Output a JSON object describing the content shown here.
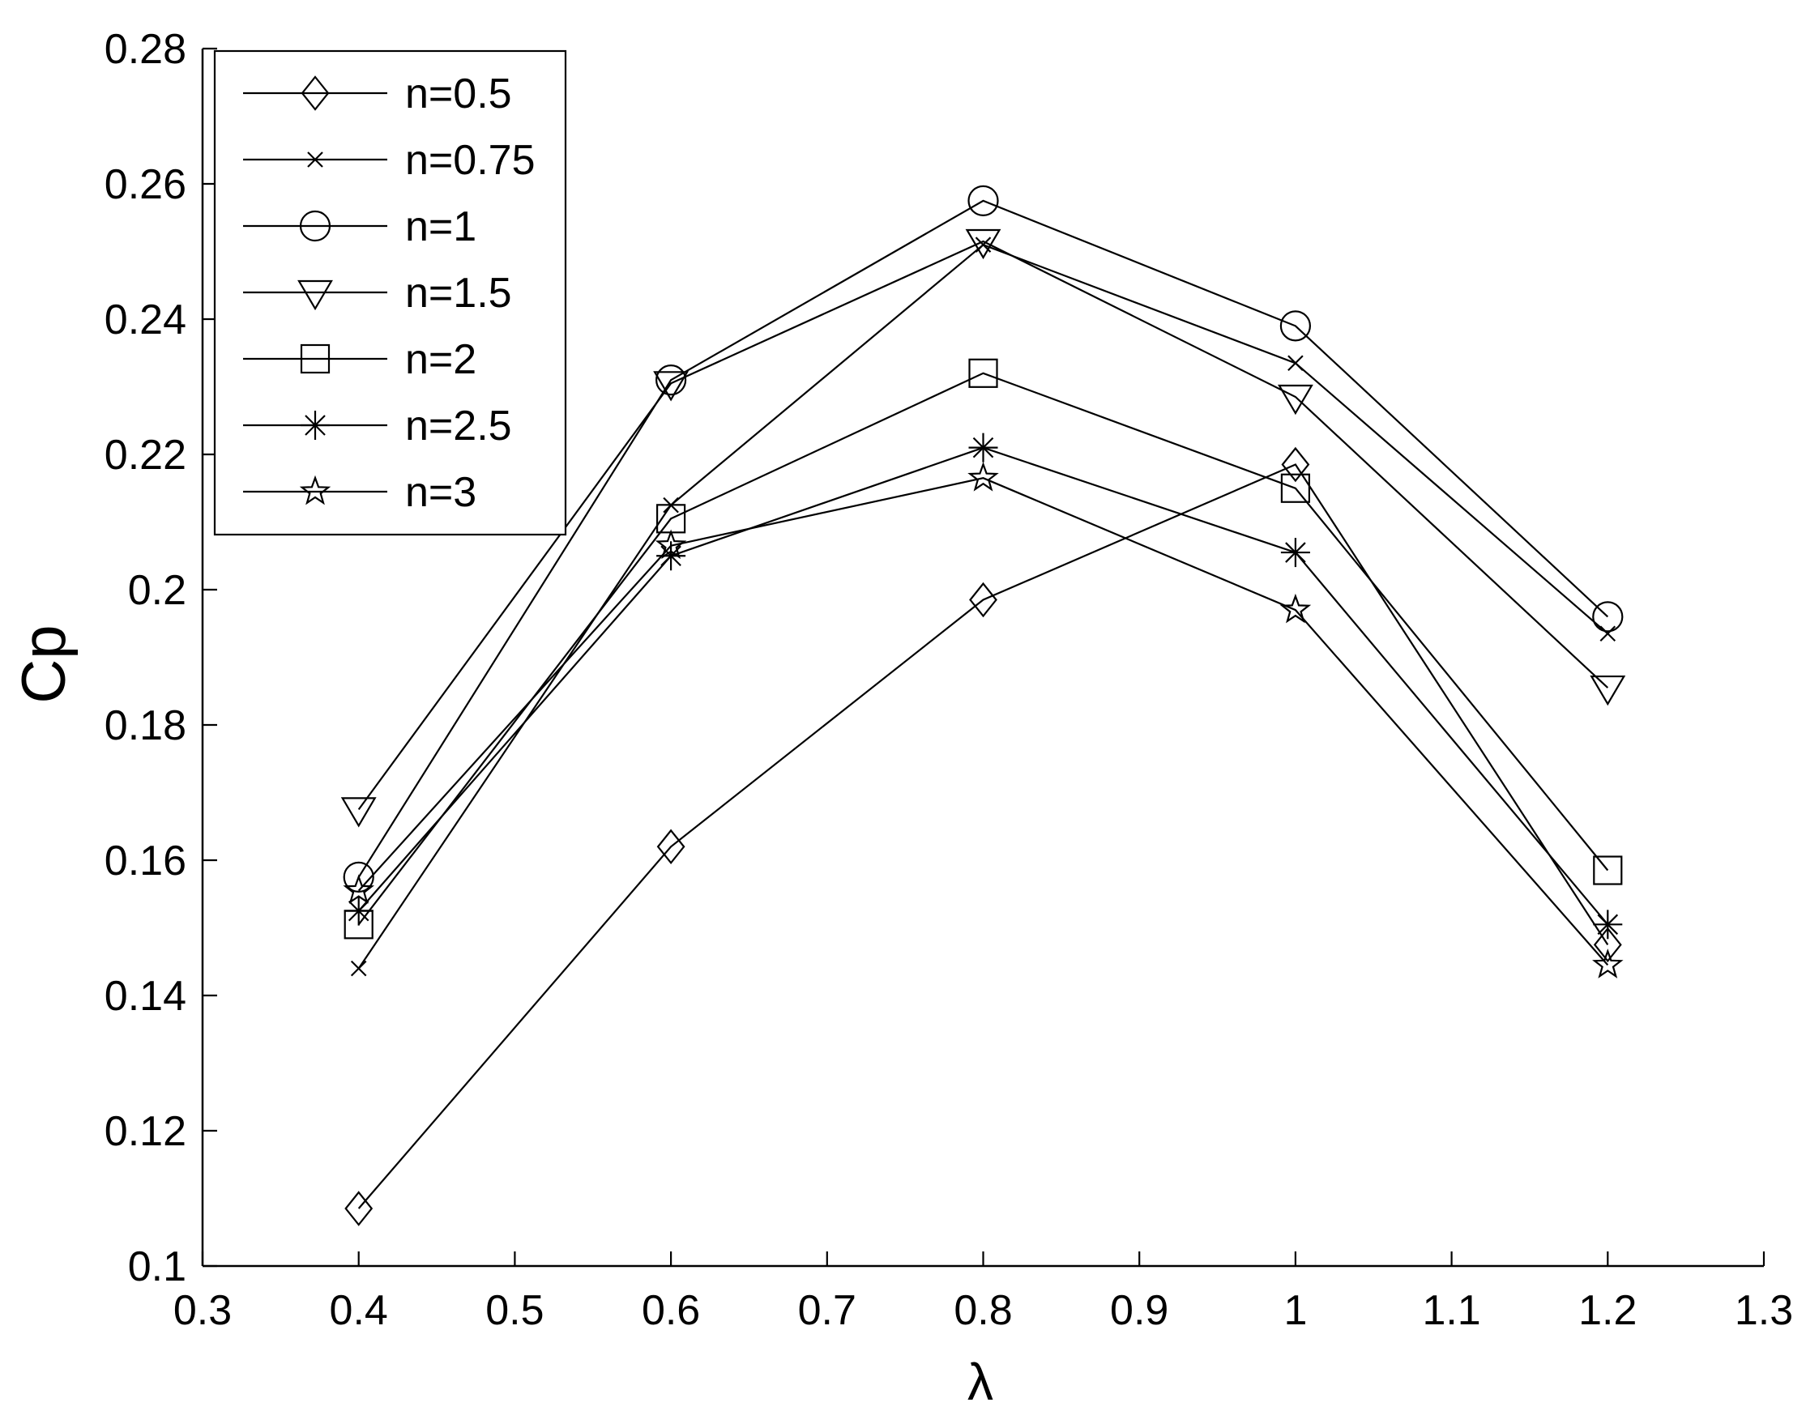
{
  "chart_data": {
    "type": "line",
    "xlabel": "λ",
    "ylabel": "Cp",
    "xlim": [
      0.3,
      1.3
    ],
    "ylim": [
      0.1,
      0.28
    ],
    "xticks": [
      "0.3",
      "0.4",
      "0.5",
      "0.6",
      "0.7",
      "0.8",
      "0.9",
      "1",
      "1.1",
      "1.2",
      "1.3"
    ],
    "yticks": [
      "0.1",
      "0.12",
      "0.14",
      "0.16",
      "0.18",
      "0.2",
      "0.22",
      "0.24",
      "0.26",
      "0.28"
    ],
    "grid": false,
    "legend_position": "top-left",
    "x": [
      0.4,
      0.6,
      0.8,
      1.0,
      1.2
    ],
    "series": [
      {
        "name": "n=0.5",
        "marker": "diamond",
        "values": [
          0.1085,
          0.162,
          0.1985,
          0.2185,
          0.1475
        ]
      },
      {
        "name": "n=0.75",
        "marker": "x",
        "values": [
          0.144,
          0.2125,
          0.251,
          0.2335,
          0.1935
        ]
      },
      {
        "name": "n=1",
        "marker": "circle",
        "values": [
          0.1575,
          0.231,
          0.2575,
          0.239,
          0.196
        ]
      },
      {
        "name": "n=1.5",
        "marker": "triangle-down",
        "values": [
          0.1675,
          0.2305,
          0.2515,
          0.2285,
          0.1855
        ]
      },
      {
        "name": "n=2",
        "marker": "square",
        "values": [
          0.1505,
          0.2105,
          0.232,
          0.215,
          0.1585
        ]
      },
      {
        "name": "n=2.5",
        "marker": "asterisk",
        "values": [
          0.1525,
          0.205,
          0.221,
          0.2055,
          0.1505
        ]
      },
      {
        "name": "n=3",
        "marker": "star",
        "values": [
          0.1555,
          0.2065,
          0.2165,
          0.197,
          0.1445
        ]
      }
    ]
  }
}
